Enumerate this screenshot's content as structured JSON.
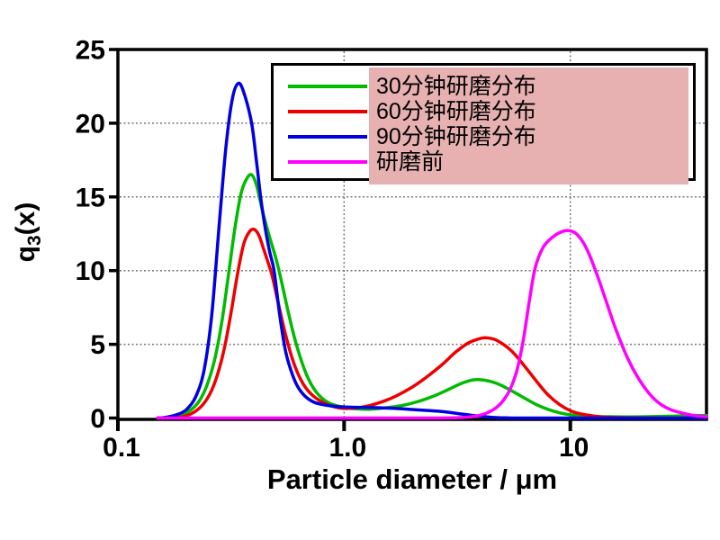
{
  "chart_data": {
    "type": "line",
    "title": "",
    "xlabel": "Particle diameter / μm",
    "ylabel": {
      "prefix": "q",
      "sub": "3",
      "suffix": "(x)"
    },
    "x_scale": "log",
    "xlim": [
      0.1,
      40
    ],
    "ylim": [
      0,
      25
    ],
    "x_ticks": [
      {
        "value": 0.1,
        "label": "0.1"
      },
      {
        "value": 1,
        "label": "1.0"
      },
      {
        "value": 10,
        "label": "10"
      }
    ],
    "y_ticks": [
      {
        "value": 0,
        "label": "0"
      },
      {
        "value": 5,
        "label": "5"
      },
      {
        "value": 10,
        "label": "10"
      },
      {
        "value": 15,
        "label": "15"
      },
      {
        "value": 20,
        "label": "20"
      },
      {
        "value": 25,
        "label": "25"
      }
    ],
    "grid_x": [
      1,
      10
    ],
    "grid_y": [
      5,
      10,
      15,
      20
    ],
    "grid_color": "#777777",
    "frame_color": "#000000",
    "legend": {
      "position": "top-right",
      "highlight_color": "#e7b1b1"
    },
    "series": [
      {
        "name": "30分钟研磨分布",
        "slug": "curve-30min-grinding",
        "color": "#00bb00",
        "peaks": [
          {
            "x": 0.39,
            "y": 16.5
          },
          {
            "x": 3.8,
            "y": 2.6
          }
        ],
        "points": [
          [
            0.15,
            0
          ],
          [
            0.17,
            0.05
          ],
          [
            0.19,
            0.2
          ],
          [
            0.21,
            0.55
          ],
          [
            0.23,
            1.2
          ],
          [
            0.25,
            2.4
          ],
          [
            0.27,
            4.2
          ],
          [
            0.29,
            6.8
          ],
          [
            0.31,
            10
          ],
          [
            0.33,
            13
          ],
          [
            0.35,
            15.2
          ],
          [
            0.37,
            16.2
          ],
          [
            0.39,
            16.5
          ],
          [
            0.41,
            15.8
          ],
          [
            0.44,
            13.8
          ],
          [
            0.47,
            12.2
          ],
          [
            0.5,
            10.8
          ],
          [
            0.53,
            9.2
          ],
          [
            0.57,
            7
          ],
          [
            0.62,
            4.8
          ],
          [
            0.68,
            3
          ],
          [
            0.75,
            1.8
          ],
          [
            0.85,
            1.05
          ],
          [
            1,
            0.72
          ],
          [
            1.15,
            0.62
          ],
          [
            1.3,
            0.6
          ],
          [
            1.5,
            0.68
          ],
          [
            1.8,
            0.85
          ],
          [
            2.1,
            1.1
          ],
          [
            2.5,
            1.5
          ],
          [
            2.9,
            1.95
          ],
          [
            3.3,
            2.35
          ],
          [
            3.7,
            2.58
          ],
          [
            4,
            2.6
          ],
          [
            4.4,
            2.5
          ],
          [
            4.9,
            2.25
          ],
          [
            5.5,
            1.85
          ],
          [
            6.2,
            1.4
          ],
          [
            7,
            0.95
          ],
          [
            8,
            0.58
          ],
          [
            9,
            0.35
          ],
          [
            10,
            0.22
          ],
          [
            11.5,
            0.14
          ],
          [
            13,
            0.1
          ],
          [
            15,
            0.09
          ],
          [
            18,
            0.08
          ],
          [
            22,
            0.09
          ],
          [
            27,
            0.12
          ],
          [
            33,
            0.15
          ],
          [
            40,
            0.18
          ]
        ]
      },
      {
        "name": "60分钟研磨分布",
        "slug": "curve-60min-grinding",
        "color": "#ee0000",
        "peaks": [
          {
            "x": 0.4,
            "y": 12.8
          },
          {
            "x": 4.2,
            "y": 5.45
          }
        ],
        "points": [
          [
            0.15,
            0
          ],
          [
            0.18,
            0.03
          ],
          [
            0.2,
            0.15
          ],
          [
            0.22,
            0.45
          ],
          [
            0.24,
            1
          ],
          [
            0.26,
            1.9
          ],
          [
            0.28,
            3.3
          ],
          [
            0.3,
            5.2
          ],
          [
            0.32,
            7.6
          ],
          [
            0.34,
            10
          ],
          [
            0.36,
            11.8
          ],
          [
            0.38,
            12.6
          ],
          [
            0.4,
            12.8
          ],
          [
            0.42,
            12.4
          ],
          [
            0.44,
            11.5
          ],
          [
            0.46,
            10.6
          ],
          [
            0.48,
            9.7
          ],
          [
            0.51,
            7.9
          ],
          [
            0.55,
            5.7
          ],
          [
            0.6,
            3.7
          ],
          [
            0.66,
            2.3
          ],
          [
            0.73,
            1.5
          ],
          [
            0.82,
            1
          ],
          [
            0.91,
            0.75
          ],
          [
            1,
            0.65
          ],
          [
            1.15,
            0.7
          ],
          [
            1.3,
            0.85
          ],
          [
            1.5,
            1.15
          ],
          [
            1.7,
            1.5
          ],
          [
            2,
            2.1
          ],
          [
            2.3,
            2.75
          ],
          [
            2.7,
            3.6
          ],
          [
            3.1,
            4.45
          ],
          [
            3.5,
            5.05
          ],
          [
            3.9,
            5.35
          ],
          [
            4.2,
            5.45
          ],
          [
            4.6,
            5.35
          ],
          [
            5,
            5.05
          ],
          [
            5.5,
            4.55
          ],
          [
            6,
            3.9
          ],
          [
            6.6,
            3.1
          ],
          [
            7.3,
            2.25
          ],
          [
            8,
            1.55
          ],
          [
            9,
            0.9
          ],
          [
            10,
            0.5
          ],
          [
            11,
            0.3
          ],
          [
            12.5,
            0.15
          ],
          [
            14,
            0.07
          ],
          [
            16,
            0.03
          ],
          [
            18,
            0.02
          ],
          [
            21,
            0.01
          ],
          [
            25,
            0
          ],
          [
            40,
            0
          ]
        ]
      },
      {
        "name": "90分钟研磨分布",
        "slug": "curve-90min-grinding",
        "color": "#0000e0",
        "peaks": [
          {
            "x": 0.34,
            "y": 22.7
          }
        ],
        "points": [
          [
            0.15,
            0
          ],
          [
            0.16,
            0.03
          ],
          [
            0.18,
            0.2
          ],
          [
            0.2,
            0.55
          ],
          [
            0.22,
            1.4
          ],
          [
            0.24,
            3.2
          ],
          [
            0.26,
            7
          ],
          [
            0.28,
            13
          ],
          [
            0.3,
            18.3
          ],
          [
            0.32,
            21.6
          ],
          [
            0.34,
            22.7
          ],
          [
            0.36,
            22.1
          ],
          [
            0.39,
            20
          ],
          [
            0.41,
            17.4
          ],
          [
            0.43,
            14.7
          ],
          [
            0.45,
            12.7
          ],
          [
            0.47,
            11.2
          ],
          [
            0.49,
            10
          ],
          [
            0.52,
            6.9
          ],
          [
            0.55,
            4.6
          ],
          [
            0.58,
            3.3
          ],
          [
            0.62,
            2.2
          ],
          [
            0.67,
            1.5
          ],
          [
            0.73,
            1.1
          ],
          [
            0.8,
            0.92
          ],
          [
            0.9,
            0.8
          ],
          [
            1,
            0.75
          ],
          [
            1.2,
            0.72
          ],
          [
            1.4,
            0.7
          ],
          [
            1.7,
            0.65
          ],
          [
            2,
            0.58
          ],
          [
            2.4,
            0.5
          ],
          [
            2.8,
            0.42
          ],
          [
            3.2,
            0.3
          ],
          [
            3.7,
            0.18
          ],
          [
            4.2,
            0.09
          ],
          [
            4.7,
            0.03
          ],
          [
            5.2,
            0.01
          ],
          [
            6,
            0
          ],
          [
            10,
            0
          ],
          [
            20,
            0
          ],
          [
            40,
            0
          ]
        ]
      },
      {
        "name": "研磨前",
        "slug": "curve-before-grinding",
        "color": "#ff00ff",
        "peaks": [
          {
            "x": 9.5,
            "y": 12.7
          }
        ],
        "points": [
          [
            0.15,
            0
          ],
          [
            0.3,
            0
          ],
          [
            0.6,
            0
          ],
          [
            1,
            0
          ],
          [
            1.5,
            0
          ],
          [
            2,
            0
          ],
          [
            2.5,
            0
          ],
          [
            3,
            0.01
          ],
          [
            3.4,
            0.05
          ],
          [
            3.8,
            0.12
          ],
          [
            4.2,
            0.3
          ],
          [
            4.6,
            0.6
          ],
          [
            5,
            1.1
          ],
          [
            5.4,
            1.9
          ],
          [
            5.8,
            3.2
          ],
          [
            6.2,
            5.3
          ],
          [
            6.6,
            8
          ],
          [
            7,
            10.2
          ],
          [
            7.6,
            11.6
          ],
          [
            8.4,
            12.3
          ],
          [
            9.2,
            12.65
          ],
          [
            10,
            12.7
          ],
          [
            10.8,
            12.4
          ],
          [
            11.8,
            11.5
          ],
          [
            13,
            9.9
          ],
          [
            14.5,
            7.8
          ],
          [
            16,
            5.9
          ],
          [
            18,
            4
          ],
          [
            20,
            2.7
          ],
          [
            22.5,
            1.6
          ],
          [
            25,
            0.95
          ],
          [
            28,
            0.55
          ],
          [
            32,
            0.3
          ],
          [
            36,
            0.15
          ],
          [
            40,
            0.1
          ]
        ]
      }
    ]
  }
}
